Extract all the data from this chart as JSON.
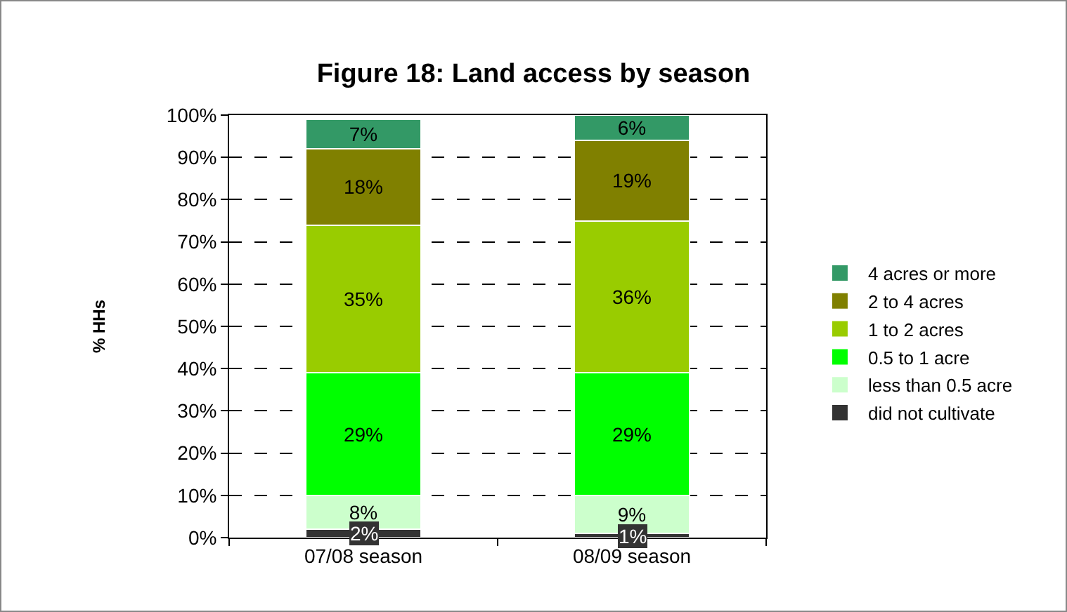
{
  "chart_data": {
    "type": "bar",
    "stacked": true,
    "title": "Figure 18: Land access by season",
    "ylabel": "% HHs",
    "categories": [
      "07/08 season",
      "08/09 season"
    ],
    "series": [
      {
        "name": "did not cultivate",
        "color": "#333333",
        "values": [
          2,
          1
        ],
        "value_labels": [
          "2%",
          "1%"
        ]
      },
      {
        "name": "less than 0.5 acre",
        "color": "#ccffcc",
        "values": [
          8,
          9
        ],
        "value_labels": [
          "8%",
          "9%"
        ]
      },
      {
        "name": "0.5 to 1 acre",
        "color": "#00ff00",
        "values": [
          29,
          29
        ],
        "value_labels": [
          "29%",
          "29%"
        ]
      },
      {
        "name": "1 to 2 acres",
        "color": "#99cc00",
        "values": [
          35,
          36
        ],
        "value_labels": [
          "35%",
          "36%"
        ]
      },
      {
        "name": "2 to 4 acres",
        "color": "#808000",
        "values": [
          18,
          19
        ],
        "value_labels": [
          "18%",
          "19%"
        ]
      },
      {
        "name": "4 acres or more",
        "color": "#339966",
        "values": [
          7,
          6
        ],
        "value_labels": [
          "7%",
          "6%"
        ]
      }
    ],
    "ylim": [
      0,
      100
    ],
    "yticks": [
      {
        "value": 0,
        "label": "0%"
      },
      {
        "value": 10,
        "label": "10%"
      },
      {
        "value": 20,
        "label": "20%"
      },
      {
        "value": 30,
        "label": "30%"
      },
      {
        "value": 40,
        "label": "40%"
      },
      {
        "value": 50,
        "label": "50%"
      },
      {
        "value": 60,
        "label": "60%"
      },
      {
        "value": 70,
        "label": "70%"
      },
      {
        "value": 80,
        "label": "80%"
      },
      {
        "value": 90,
        "label": "90%"
      },
      {
        "value": 100,
        "label": "100%"
      }
    ],
    "grid": "y",
    "legend": "right"
  }
}
